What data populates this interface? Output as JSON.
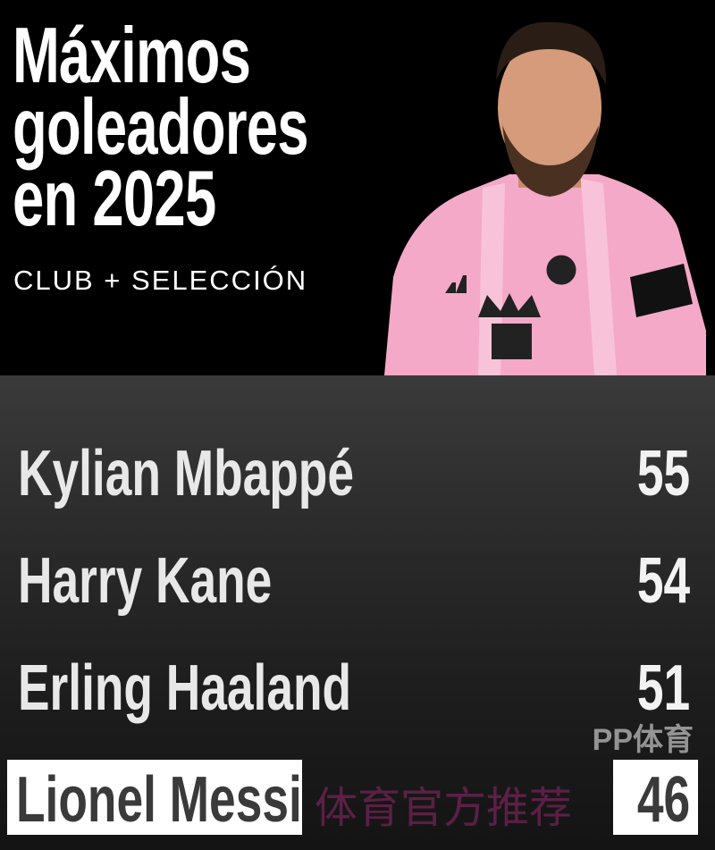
{
  "header": {
    "title_lines": [
      "Máximos",
      "goleadores",
      "en 2025"
    ],
    "subtitle": "CLUB + SELECCIÓN"
  },
  "colors": {
    "jersey_pink": "#f4a9c8",
    "highlight_bg": "#ffffff",
    "highlight_text": "#3a3a3a"
  },
  "ranking": [
    {
      "name": "Kylian Mbappé",
      "goals": "55"
    },
    {
      "name": "Harry Kane",
      "goals": "54"
    },
    {
      "name": "Erling Haaland",
      "goals": "51"
    },
    {
      "name": "Lionel Messi",
      "goals": "46",
      "highlighted": true
    }
  ],
  "watermark": {
    "text": "体育官方推荐",
    "logo": "PP体育"
  }
}
